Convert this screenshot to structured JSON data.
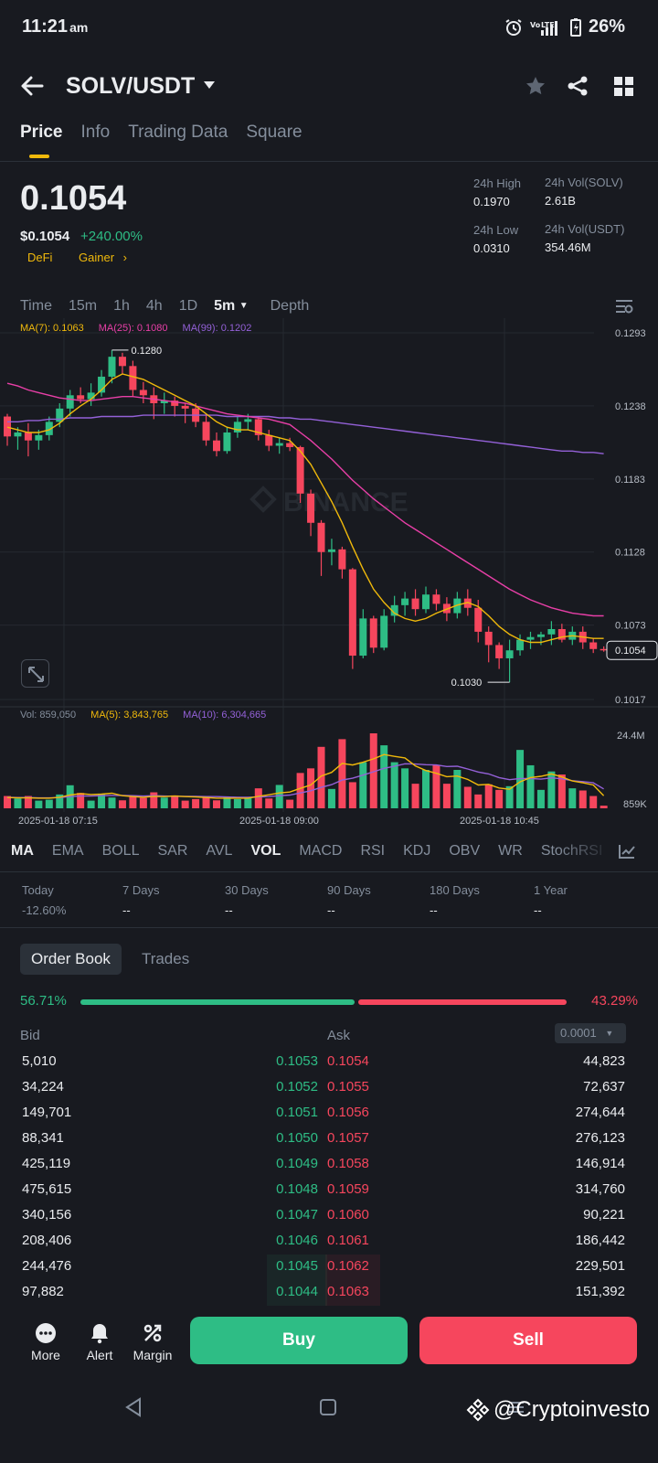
{
  "status_bar": {
    "time": "11:21",
    "ampm": "am",
    "battery": "26%"
  },
  "header": {
    "pair": "SOLV/USDT"
  },
  "tabs": [
    {
      "label": "Price",
      "active": true
    },
    {
      "label": "Info"
    },
    {
      "label": "Trading Data"
    },
    {
      "label": "Square"
    }
  ],
  "price": {
    "last": "0.1054",
    "usd": "$0.1054",
    "change": "+240.00%",
    "tags": [
      "DeFi",
      "Gainer"
    ],
    "high_label": "24h High",
    "high_value": "0.1970",
    "low_label": "24h Low",
    "low_value": "0.0310",
    "vol_base_label": "24h Vol(SOLV)",
    "vol_base_value": "2.61B",
    "vol_quote_label": "24h Vol(USDT)",
    "vol_quote_value": "354.46M"
  },
  "intervals": [
    "Time",
    "15m",
    "1h",
    "4h",
    "1D",
    "5m",
    "Depth"
  ],
  "chart": {
    "ma_legend": {
      "ma7": "MA(7): 0.1063",
      "ma25": "MA(25): 0.1080",
      "ma99": "MA(99): 0.1202"
    },
    "vol_legend": {
      "vol": "Vol: 859,050",
      "ma5": "MA(5): 3,843,765",
      "ma10": "MA(10): 6,304,665"
    },
    "price_ticks": [
      "0.1293",
      "0.1238",
      "0.1183",
      "0.1128",
      "0.1073",
      "0.1017"
    ],
    "high_marker": "0.1280",
    "low_marker": "0.1030",
    "current_price": "0.1054",
    "vol_ticks": [
      "24.4M",
      "859K"
    ],
    "time_labels": [
      "2025-01-18 07:15",
      "2025-01-18 09:00",
      "2025-01-18 10:45"
    ],
    "watermark": "BINANCE",
    "colors": {
      "up": "#2ebd85",
      "down": "#f6465d",
      "ma7": "#f0b90b",
      "ma25": "#e83fa7",
      "ma99": "#9461d8"
    }
  },
  "chart_data": {
    "type": "candlestick",
    "interval": "5m",
    "ylim": [
      0.1017,
      0.1293
    ],
    "candles": [
      {
        "o": 0.123,
        "h": 0.1232,
        "l": 0.1208,
        "c": 0.1215
      },
      {
        "o": 0.1215,
        "h": 0.1222,
        "l": 0.1205,
        "c": 0.1218
      },
      {
        "o": 0.1218,
        "h": 0.1225,
        "l": 0.12,
        "c": 0.1212
      },
      {
        "o": 0.1212,
        "h": 0.122,
        "l": 0.1205,
        "c": 0.1216
      },
      {
        "o": 0.1216,
        "h": 0.123,
        "l": 0.1212,
        "c": 0.1226
      },
      {
        "o": 0.1226,
        "h": 0.124,
        "l": 0.1222,
        "c": 0.1236
      },
      {
        "o": 0.1236,
        "h": 0.125,
        "l": 0.123,
        "c": 0.1246
      },
      {
        "o": 0.1246,
        "h": 0.1252,
        "l": 0.124,
        "c": 0.1243
      },
      {
        "o": 0.1243,
        "h": 0.1255,
        "l": 0.1238,
        "c": 0.1248
      },
      {
        "o": 0.1248,
        "h": 0.1265,
        "l": 0.1245,
        "c": 0.126
      },
      {
        "o": 0.126,
        "h": 0.128,
        "l": 0.1255,
        "c": 0.1275
      },
      {
        "o": 0.1275,
        "h": 0.1278,
        "l": 0.1262,
        "c": 0.1268
      },
      {
        "o": 0.1268,
        "h": 0.1272,
        "l": 0.1245,
        "c": 0.125
      },
      {
        "o": 0.125,
        "h": 0.1256,
        "l": 0.124,
        "c": 0.1246
      },
      {
        "o": 0.1246,
        "h": 0.1252,
        "l": 0.1228,
        "c": 0.124
      },
      {
        "o": 0.124,
        "h": 0.1248,
        "l": 0.1232,
        "c": 0.1242
      },
      {
        "o": 0.1242,
        "h": 0.1245,
        "l": 0.123,
        "c": 0.1238
      },
      {
        "o": 0.1238,
        "h": 0.124,
        "l": 0.1225,
        "c": 0.1236
      },
      {
        "o": 0.1236,
        "h": 0.124,
        "l": 0.1222,
        "c": 0.1226
      },
      {
        "o": 0.1226,
        "h": 0.1232,
        "l": 0.1208,
        "c": 0.1212
      },
      {
        "o": 0.1212,
        "h": 0.1218,
        "l": 0.12,
        "c": 0.1204
      },
      {
        "o": 0.1204,
        "h": 0.1222,
        "l": 0.1202,
        "c": 0.1218
      },
      {
        "o": 0.1218,
        "h": 0.123,
        "l": 0.1214,
        "c": 0.1226
      },
      {
        "o": 0.1226,
        "h": 0.1232,
        "l": 0.122,
        "c": 0.1228
      },
      {
        "o": 0.1228,
        "h": 0.123,
        "l": 0.1212,
        "c": 0.1216
      },
      {
        "o": 0.1216,
        "h": 0.122,
        "l": 0.1204,
        "c": 0.1208
      },
      {
        "o": 0.1208,
        "h": 0.1214,
        "l": 0.1202,
        "c": 0.121
      },
      {
        "o": 0.121,
        "h": 0.1214,
        "l": 0.1204,
        "c": 0.1207
      },
      {
        "o": 0.1207,
        "h": 0.1208,
        "l": 0.1165,
        "c": 0.1172
      },
      {
        "o": 0.1172,
        "h": 0.1175,
        "l": 0.114,
        "c": 0.115
      },
      {
        "o": 0.115,
        "h": 0.1152,
        "l": 0.111,
        "c": 0.1128
      },
      {
        "o": 0.1128,
        "h": 0.1138,
        "l": 0.1118,
        "c": 0.113
      },
      {
        "o": 0.113,
        "h": 0.1132,
        "l": 0.1108,
        "c": 0.1115
      },
      {
        "o": 0.1115,
        "h": 0.1116,
        "l": 0.104,
        "c": 0.105
      },
      {
        "o": 0.105,
        "h": 0.1085,
        "l": 0.1048,
        "c": 0.1078
      },
      {
        "o": 0.1078,
        "h": 0.108,
        "l": 0.1052,
        "c": 0.1056
      },
      {
        "o": 0.1056,
        "h": 0.1085,
        "l": 0.1054,
        "c": 0.108
      },
      {
        "o": 0.108,
        "h": 0.1095,
        "l": 0.1075,
        "c": 0.1088
      },
      {
        "o": 0.1088,
        "h": 0.1098,
        "l": 0.108,
        "c": 0.1093
      },
      {
        "o": 0.1093,
        "h": 0.11,
        "l": 0.108,
        "c": 0.1085
      },
      {
        "o": 0.1085,
        "h": 0.1102,
        "l": 0.1082,
        "c": 0.1096
      },
      {
        "o": 0.1096,
        "h": 0.11,
        "l": 0.1084,
        "c": 0.1089
      },
      {
        "o": 0.1089,
        "h": 0.1094,
        "l": 0.1076,
        "c": 0.1082
      },
      {
        "o": 0.1082,
        "h": 0.1098,
        "l": 0.1078,
        "c": 0.1093
      },
      {
        "o": 0.1093,
        "h": 0.11,
        "l": 0.108,
        "c": 0.1086
      },
      {
        "o": 0.1086,
        "h": 0.1092,
        "l": 0.106,
        "c": 0.1068
      },
      {
        "o": 0.1068,
        "h": 0.1072,
        "l": 0.1045,
        "c": 0.1058
      },
      {
        "o": 0.1058,
        "h": 0.106,
        "l": 0.104,
        "c": 0.1048
      },
      {
        "o": 0.1048,
        "h": 0.1062,
        "l": 0.103,
        "c": 0.1054
      },
      {
        "o": 0.1054,
        "h": 0.1066,
        "l": 0.105,
        "c": 0.1062
      },
      {
        "o": 0.1062,
        "h": 0.1068,
        "l": 0.1055,
        "c": 0.1064
      },
      {
        "o": 0.1064,
        "h": 0.1068,
        "l": 0.1058,
        "c": 0.1066
      },
      {
        "o": 0.1066,
        "h": 0.1076,
        "l": 0.1058,
        "c": 0.107
      },
      {
        "o": 0.107,
        "h": 0.1074,
        "l": 0.106,
        "c": 0.1062
      },
      {
        "o": 0.1062,
        "h": 0.1072,
        "l": 0.1058,
        "c": 0.1068
      },
      {
        "o": 0.1068,
        "h": 0.1072,
        "l": 0.1055,
        "c": 0.106
      },
      {
        "o": 0.106,
        "h": 0.1063,
        "l": 0.1052,
        "c": 0.1055
      },
      {
        "o": 0.1055,
        "h": 0.1057,
        "l": 0.1053,
        "c": 0.1054
      }
    ],
    "ma_lines": {
      "ma7": [
        0.1222,
        0.122,
        0.1218,
        0.1218,
        0.122,
        0.1225,
        0.1232,
        0.1238,
        0.1243,
        0.125,
        0.1258,
        0.1262,
        0.126,
        0.1258,
        0.1254,
        0.125,
        0.1246,
        0.1242,
        0.1238,
        0.1232,
        0.1226,
        0.1222,
        0.122,
        0.122,
        0.1218,
        0.1216,
        0.1214,
        0.1212,
        0.1204,
        0.1194,
        0.118,
        0.1166,
        0.115,
        0.1132,
        0.1115,
        0.11,
        0.109,
        0.1082,
        0.1078,
        0.1076,
        0.1078,
        0.1082,
        0.1085,
        0.1088,
        0.109,
        0.1087,
        0.108,
        0.1072,
        0.1066,
        0.1062,
        0.106,
        0.106,
        0.1062,
        0.1064,
        0.1065,
        0.1064,
        0.1063,
        0.1063
      ],
      "ma25": [
        0.1255,
        0.1253,
        0.125,
        0.1248,
        0.1246,
        0.1244,
        0.1243,
        0.1242,
        0.1242,
        0.1243,
        0.1244,
        0.1245,
        0.1245,
        0.1244,
        0.1243,
        0.1242,
        0.1241,
        0.124,
        0.1238,
        0.1236,
        0.1234,
        0.1232,
        0.1231,
        0.123,
        0.1229,
        0.1228,
        0.1226,
        0.1224,
        0.1218,
        0.1212,
        0.1205,
        0.1198,
        0.119,
        0.1182,
        0.1175,
        0.1168,
        0.1162,
        0.1156,
        0.115,
        0.1145,
        0.114,
        0.1135,
        0.113,
        0.1125,
        0.112,
        0.1115,
        0.111,
        0.1105,
        0.11,
        0.1096,
        0.1092,
        0.1089,
        0.1086,
        0.1084,
        0.1082,
        0.1081,
        0.108,
        0.108
      ],
      "ma99": [
        0.1226,
        0.1226,
        0.1227,
        0.1227,
        0.1228,
        0.1228,
        0.1229,
        0.1229,
        0.1229,
        0.123,
        0.123,
        0.123,
        0.123,
        0.1231,
        0.1231,
        0.1231,
        0.1231,
        0.1231,
        0.1231,
        0.1231,
        0.1231,
        0.123,
        0.123,
        0.123,
        0.123,
        0.123,
        0.1229,
        0.1229,
        0.1228,
        0.1228,
        0.1227,
        0.1226,
        0.1225,
        0.1224,
        0.1223,
        0.1222,
        0.1221,
        0.122,
        0.1219,
        0.1218,
        0.1217,
        0.1216,
        0.1215,
        0.1214,
        0.1213,
        0.1212,
        0.1211,
        0.121,
        0.1209,
        0.1208,
        0.1207,
        0.1206,
        0.1205,
        0.1204,
        0.1204,
        0.1203,
        0.1203,
        0.1202
      ]
    },
    "volume": {
      "ylim": [
        0,
        24400000
      ],
      "values": [
        4.0,
        3.2,
        4.0,
        2.5,
        2.8,
        4.5,
        7.5,
        5.0,
        2.5,
        4.5,
        3.5,
        2.6,
        4.2,
        3.4,
        5.2,
        3.5,
        4.2,
        2.5,
        3.0,
        4.0,
        2.6,
        3.6,
        3.0,
        3.5,
        6.5,
        3.2,
        7.6,
        2.8,
        11.5,
        13.0,
        20.0,
        6.3,
        22.5,
        8.5,
        15.0,
        24.4,
        20.5,
        15.0,
        13.0,
        8.0,
        12.5,
        14.0,
        8.0,
        12.5,
        7.0,
        4.5,
        7.8,
        6.0,
        7.2,
        19.0,
        14.0,
        6.0,
        12.0,
        11.0,
        6.5,
        5.8,
        4.0,
        0.859
      ],
      "ma5": [
        3.5,
        3.4,
        3.4,
        3.3,
        3.3,
        3.6,
        4.3,
        4.8,
        4.5,
        4.6,
        4.9,
        4.1,
        3.8,
        3.6,
        3.9,
        3.8,
        4.0,
        3.8,
        3.7,
        3.5,
        3.3,
        3.3,
        3.3,
        3.3,
        3.9,
        4.4,
        5.0,
        5.3,
        6.5,
        7.6,
        10.5,
        11.7,
        14.6,
        14.1,
        15.0,
        16.1,
        17.5,
        16.9,
        16.4,
        13.8,
        12.3,
        11.4,
        10.3,
        10.5,
        9.4,
        7.6,
        7.8,
        6.6,
        6.2,
        8.6,
        10.0,
        10.4,
        11.2,
        10.2,
        8.9,
        8.3,
        7.6,
        4.1
      ],
      "ma10": [
        3.6,
        3.5,
        3.5,
        3.4,
        3.4,
        3.5,
        3.8,
        4.0,
        4.0,
        4.1,
        4.2,
        4.2,
        4.1,
        4.0,
        4.1,
        4.0,
        3.9,
        3.9,
        3.9,
        3.8,
        3.8,
        3.7,
        3.6,
        3.6,
        3.7,
        3.8,
        4.1,
        4.3,
        5.0,
        5.7,
        6.8,
        7.7,
        9.2,
        9.8,
        10.8,
        11.9,
        13.0,
        13.7,
        14.5,
        14.4,
        14.2,
        14.1,
        13.6,
        13.7,
        12.8,
        11.8,
        11.2,
        10.0,
        9.3,
        9.7,
        9.7,
        9.5,
        9.9,
        9.6,
        9.0,
        8.7,
        8.3,
        6.3
      ]
    }
  },
  "indicators": [
    "MA",
    "EMA",
    "BOLL",
    "SAR",
    "AVL",
    "VOL",
    "MACD",
    "RSI",
    "KDJ",
    "OBV",
    "WR",
    "StochRSI"
  ],
  "performance": [
    {
      "label": "Today",
      "value": "-12.60%"
    },
    {
      "label": "7 Days",
      "value": "--"
    },
    {
      "label": "30 Days",
      "value": "--"
    },
    {
      "label": "90 Days",
      "value": "--"
    },
    {
      "label": "180 Days",
      "value": "--"
    },
    {
      "label": "1 Year",
      "value": "--"
    }
  ],
  "order_book": {
    "tab_book": "Order Book",
    "tab_trades": "Trades",
    "bid_pct": "56.71%",
    "ask_pct": "43.29%",
    "bid_ratio": 0.5671,
    "bid_label": "Bid",
    "ask_label": "Ask",
    "precision": "0.0001",
    "rows": [
      {
        "bid_qty": "5,010",
        "bid_px": "0.1053",
        "ask_px": "0.1054",
        "ask_qty": "44,823"
      },
      {
        "bid_qty": "34,224",
        "bid_px": "0.1052",
        "ask_px": "0.1055",
        "ask_qty": "72,637"
      },
      {
        "bid_qty": "149,701",
        "bid_px": "0.1051",
        "ask_px": "0.1056",
        "ask_qty": "274,644"
      },
      {
        "bid_qty": "88,341",
        "bid_px": "0.1050",
        "ask_px": "0.1057",
        "ask_qty": "276,123"
      },
      {
        "bid_qty": "425,119",
        "bid_px": "0.1049",
        "ask_px": "0.1058",
        "ask_qty": "146,914"
      },
      {
        "bid_qty": "475,615",
        "bid_px": "0.1048",
        "ask_px": "0.1059",
        "ask_qty": "314,760"
      },
      {
        "bid_qty": "340,156",
        "bid_px": "0.1047",
        "ask_px": "0.1060",
        "ask_qty": "90,221"
      },
      {
        "bid_qty": "208,406",
        "bid_px": "0.1046",
        "ask_px": "0.1061",
        "ask_qty": "186,442"
      },
      {
        "bid_qty": "244,476",
        "bid_px": "0.1045",
        "ask_px": "0.1062",
        "ask_qty": "229,501"
      },
      {
        "bid_qty": "97,882",
        "bid_px": "0.1044",
        "ask_px": "0.1063",
        "ask_qty": "151,392"
      }
    ]
  },
  "actions": {
    "more": "More",
    "alert": "Alert",
    "margin": "Margin",
    "buy": "Buy",
    "sell": "Sell"
  },
  "watermark": "@Cryptoinvesto"
}
